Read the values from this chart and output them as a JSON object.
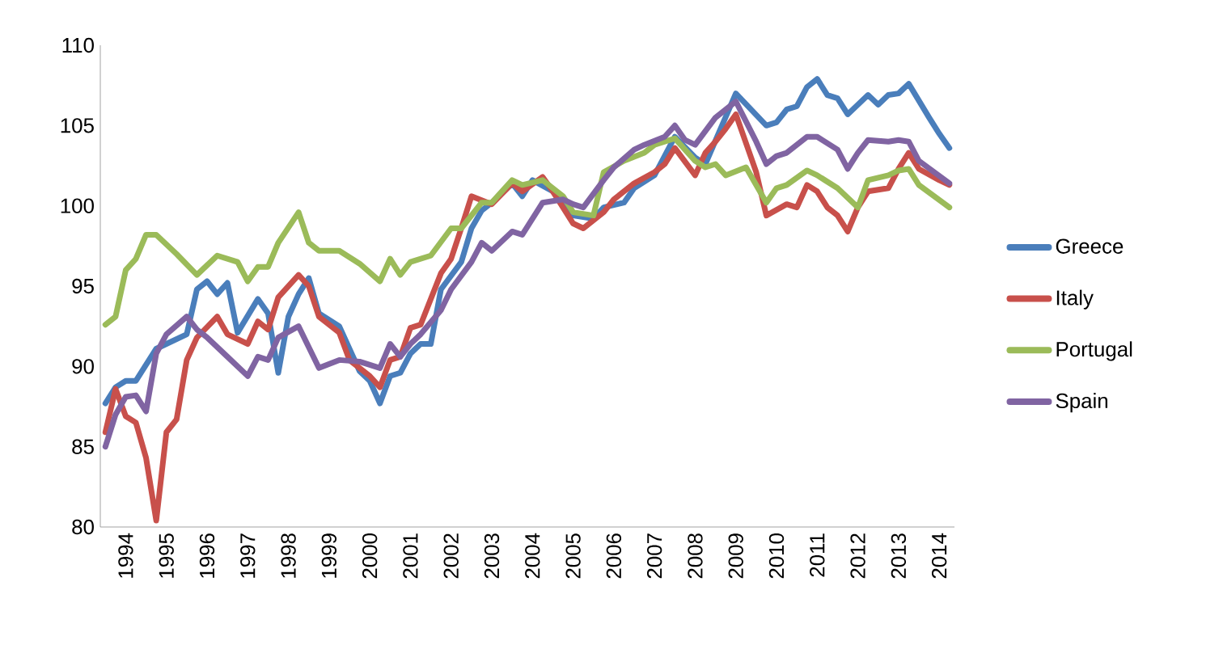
{
  "chart_data": {
    "type": "line",
    "ylim": [
      80,
      110
    ],
    "yticks": [
      80,
      85,
      90,
      95,
      100,
      105,
      110
    ],
    "xlim": [
      1993.375,
      2014.375
    ],
    "xticks": [
      1994,
      1995,
      1996,
      1997,
      1998,
      1999,
      2000,
      2001,
      2002,
      2003,
      2004,
      2005,
      2006,
      2007,
      2008,
      2009,
      2010,
      2011,
      2012,
      2013,
      2014
    ],
    "legend": "right",
    "series": [
      {
        "name": "Greece",
        "color": "#4a7ebb",
        "x": [
          1993.5,
          1993.75,
          1994,
          1994.25,
          1994.5,
          1994.75,
          1995,
          1995.5,
          1995.75,
          1996,
          1996.25,
          1996.5,
          1996.75,
          1997.25,
          1997.5,
          1997.75,
          1998,
          1998.25,
          1998.5,
          1998.75,
          1999.25,
          1999.75,
          2000,
          2000.25,
          2000.5,
          2000.75,
          2001,
          2001.25,
          2001.5,
          2001.75,
          2002.25,
          2002.5,
          2002.75,
          2003,
          2003.5,
          2003.75,
          2004,
          2004.5,
          2005,
          2005.5,
          2005.75,
          2006.25,
          2006.5,
          2007,
          2007.5,
          2008,
          2008.25,
          2009,
          2009.75,
          2010,
          2010.25,
          2010.5,
          2010.75,
          2011,
          2011.25,
          2011.5,
          2011.75,
          2012.25,
          2012.5,
          2012.75,
          2013,
          2013.25,
          2013.75,
          2014,
          2014.25
        ],
        "values": [
          87.7,
          88.7,
          89.1,
          89.1,
          90.1,
          91.1,
          91.4,
          92.0,
          94.8,
          95.3,
          94.5,
          95.2,
          92.1,
          94.2,
          93.3,
          89.6,
          93.1,
          94.5,
          95.5,
          93.3,
          92.5,
          89.7,
          89.1,
          87.7,
          89.4,
          89.6,
          90.8,
          91.4,
          91.4,
          94.8,
          96.5,
          98.6,
          99.7,
          100.2,
          101.4,
          100.6,
          101.6,
          100.9,
          99.4,
          99.2,
          99.9,
          100.2,
          101.1,
          101.9,
          104.3,
          103.0,
          102.6,
          107.0,
          105.0,
          105.2,
          106.0,
          106.2,
          107.4,
          107.9,
          106.9,
          106.7,
          105.7,
          106.9,
          106.3,
          106.9,
          107.0,
          107.6,
          105.5,
          104.5,
          103.6
        ]
      },
      {
        "name": "Italy",
        "color": "#c8504b",
        "x": [
          1993.5,
          1993.75,
          1994,
          1994.25,
          1994.5,
          1994.75,
          1995,
          1995.25,
          1995.5,
          1995.75,
          1996.25,
          1996.5,
          1997,
          1997.25,
          1997.5,
          1997.75,
          1998.25,
          1998.5,
          1998.75,
          1999.25,
          1999.5,
          2000,
          2000.25,
          2000.5,
          2000.75,
          2001,
          2001.25,
          2001.75,
          2002,
          2002.25,
          2002.5,
          2003,
          2003.5,
          2003.75,
          2004.25,
          2004.5,
          2005,
          2005.25,
          2005.75,
          2006,
          2006.5,
          2007,
          2007.25,
          2007.5,
          2008,
          2008.25,
          2008.5,
          2008.75,
          2009,
          2009.5,
          2009.75,
          2010.25,
          2010.5,
          2010.75,
          2011,
          2011.25,
          2011.5,
          2011.75,
          2012,
          2012.25,
          2012.75,
          2013,
          2013.25,
          2013.5,
          2014,
          2014.25
        ],
        "values": [
          85.9,
          88.6,
          86.9,
          86.5,
          84.3,
          80.4,
          85.9,
          86.7,
          90.4,
          91.8,
          93.1,
          92.0,
          91.4,
          92.8,
          92.3,
          94.3,
          95.7,
          95.0,
          93.1,
          92.1,
          90.4,
          89.4,
          88.7,
          90.4,
          90.6,
          92.4,
          92.6,
          95.8,
          96.7,
          98.6,
          100.6,
          100.1,
          101.4,
          100.9,
          101.8,
          100.9,
          98.9,
          98.6,
          99.6,
          100.4,
          101.4,
          102.1,
          102.6,
          103.6,
          101.9,
          103.3,
          104.0,
          104.8,
          105.7,
          102.1,
          99.4,
          100.1,
          99.9,
          101.3,
          100.9,
          99.9,
          99.4,
          98.4,
          99.9,
          100.9,
          101.1,
          102.3,
          103.3,
          102.3,
          101.6,
          101.3
        ]
      },
      {
        "name": "Portugal",
        "color": "#9bbb59",
        "x": [
          1993.5,
          1993.75,
          1994,
          1994.25,
          1994.5,
          1994.75,
          1995.25,
          1995.75,
          1996.25,
          1996.75,
          1997,
          1997.25,
          1997.5,
          1997.75,
          1998.25,
          1998.5,
          1998.75,
          1999.25,
          1999.75,
          2000.25,
          2000.5,
          2000.75,
          2001,
          2001.5,
          2002,
          2002.25,
          2002.75,
          2003,
          2003.5,
          2003.75,
          2004.25,
          2004.75,
          2005,
          2005.5,
          2005.75,
          2006.25,
          2006.75,
          2007,
          2007.5,
          2007.75,
          2008,
          2008.25,
          2008.5,
          2008.75,
          2009.25,
          2009.75,
          2010,
          2010.25,
          2010.75,
          2011,
          2011.5,
          2012,
          2012.25,
          2012.75,
          2013,
          2013.25,
          2013.5,
          2014.25
        ],
        "values": [
          92.6,
          93.1,
          96.0,
          96.7,
          98.2,
          98.2,
          97.0,
          95.7,
          96.9,
          96.5,
          95.3,
          96.2,
          96.2,
          97.7,
          99.6,
          97.7,
          97.2,
          97.2,
          96.4,
          95.3,
          96.7,
          95.7,
          96.5,
          96.9,
          98.6,
          98.6,
          100.2,
          100.2,
          101.6,
          101.3,
          101.6,
          100.6,
          99.6,
          99.4,
          102.1,
          102.8,
          103.3,
          103.8,
          104.2,
          103.5,
          102.8,
          102.4,
          102.6,
          101.9,
          102.4,
          100.2,
          101.1,
          101.3,
          102.2,
          101.9,
          101.1,
          99.9,
          101.6,
          101.9,
          102.2,
          102.3,
          101.3,
          99.9
        ]
      },
      {
        "name": "Spain",
        "color": "#8064a2",
        "x": [
          1993.5,
          1993.75,
          1994,
          1994.25,
          1994.5,
          1994.75,
          1995,
          1995.5,
          1995.75,
          1996,
          1996.5,
          1997,
          1997.25,
          1997.5,
          1997.75,
          1998.25,
          1998.75,
          1999.25,
          1999.75,
          2000,
          2000.25,
          2000.5,
          2000.75,
          2001,
          2001.25,
          2001.75,
          2002,
          2002.5,
          2002.75,
          2003,
          2003.5,
          2003.75,
          2004.25,
          2004.75,
          2005,
          2005.25,
          2005.75,
          2006,
          2006.5,
          2006.75,
          2007.25,
          2007.5,
          2007.75,
          2008,
          2008.5,
          2008.75,
          2009,
          2009.5,
          2009.75,
          2010,
          2010.25,
          2010.75,
          2011,
          2011.5,
          2011.75,
          2012,
          2012.25,
          2012.75,
          2013,
          2013.25,
          2013.5,
          2014.25
        ],
        "values": [
          85.0,
          87.0,
          88.1,
          88.2,
          87.2,
          90.8,
          92.0,
          93.1,
          92.3,
          91.8,
          90.6,
          89.4,
          90.6,
          90.4,
          91.8,
          92.5,
          89.9,
          90.4,
          90.3,
          90.1,
          89.9,
          91.4,
          90.6,
          91.4,
          92.0,
          93.5,
          94.8,
          96.5,
          97.7,
          97.2,
          98.4,
          98.2,
          100.2,
          100.4,
          100.1,
          99.9,
          101.6,
          102.4,
          103.5,
          103.8,
          104.3,
          105.0,
          104.1,
          103.8,
          105.5,
          106.0,
          106.5,
          104.0,
          102.6,
          103.1,
          103.3,
          104.3,
          104.3,
          103.5,
          102.3,
          103.3,
          104.1,
          104.0,
          104.1,
          104.0,
          102.8,
          101.4
        ]
      }
    ]
  }
}
